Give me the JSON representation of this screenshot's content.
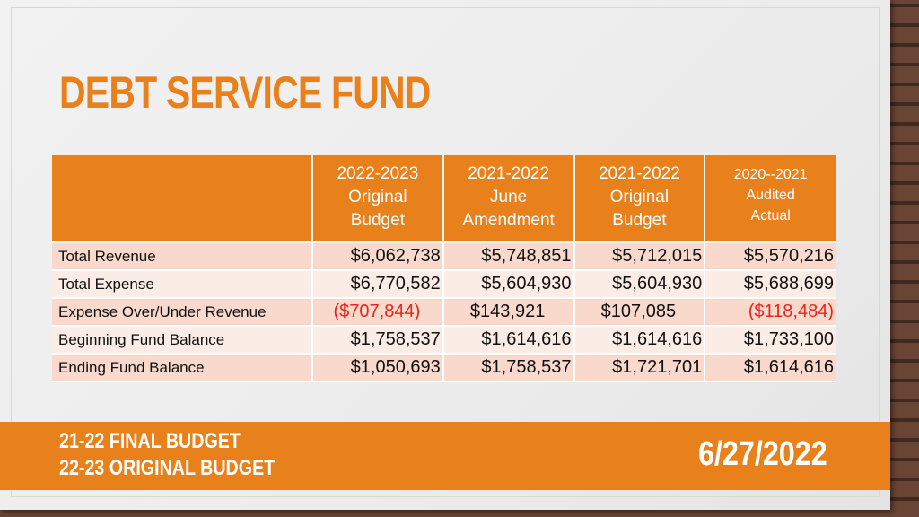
{
  "title": "DEBT SERVICE FUND",
  "table": {
    "headers": [
      "",
      [
        "2022-2023",
        "Original",
        "Budget"
      ],
      [
        "2021-2022",
        "June",
        "Amendment"
      ],
      [
        "2021-2022",
        "Original",
        "Budget"
      ],
      [
        "2020--2021",
        "Audited",
        "Actual"
      ]
    ],
    "rows": [
      {
        "label": "Total Revenue",
        "values": [
          "$6,062,738",
          "$5,748,851",
          "$5,712,015",
          "$5,570,216"
        ]
      },
      {
        "label": "Total Expense",
        "values": [
          "$6,770,582",
          "$5,604,930",
          "$5,604,930",
          "$5,688,699"
        ]
      },
      {
        "label": "Expense Over/Under Revenue",
        "values": [
          "($707,844)",
          "$143,921",
          "$107,085",
          "($118,484)"
        ]
      },
      {
        "label": "Beginning Fund Balance",
        "values": [
          "$1,758,537",
          "$1,614,616",
          "$1,614,616",
          "$1,733,100"
        ]
      },
      {
        "label": "Ending Fund Balance",
        "values": [
          "$1,050,693",
          "$1,758,537",
          "$1,721,701",
          "$1,614,616"
        ]
      }
    ]
  },
  "footer": {
    "line1": "21-22 FINAL BUDGET",
    "line2": "22-23 ORIGINAL BUDGET",
    "date": "6/27/2022"
  },
  "colors": {
    "accent": "#e8801c",
    "negative": "#e8261c"
  }
}
